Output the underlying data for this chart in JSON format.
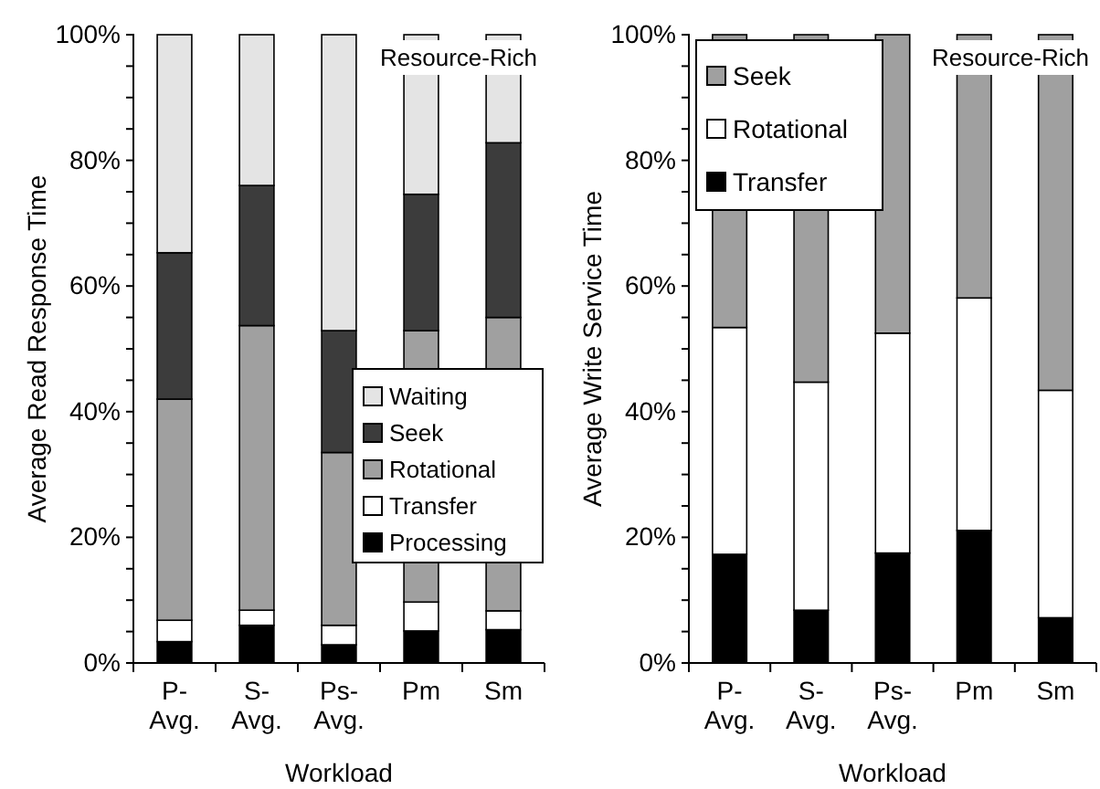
{
  "chart_data": [
    {
      "type": "bar",
      "stacked": true,
      "xlabel": "Workload",
      "ylabel": "Average Read Response Time",
      "categories": [
        "P- Avg.",
        "S- Avg.",
        "Ps- Avg.",
        "Pm",
        "Sm"
      ],
      "ylim": [
        0,
        100
      ],
      "yticks": [
        {
          "value": 0,
          "label": "0%"
        },
        {
          "value": 5,
          "label": null
        },
        {
          "value": 10,
          "label": null
        },
        {
          "value": 15,
          "label": null
        },
        {
          "value": 20,
          "label": "20%"
        },
        {
          "value": 25,
          "label": null
        },
        {
          "value": 30,
          "label": null
        },
        {
          "value": 35,
          "label": null
        },
        {
          "value": 40,
          "label": "40%"
        },
        {
          "value": 45,
          "label": null
        },
        {
          "value": 50,
          "label": null
        },
        {
          "value": 55,
          "label": null
        },
        {
          "value": 60,
          "label": "60%"
        },
        {
          "value": 65,
          "label": null
        },
        {
          "value": 70,
          "label": null
        },
        {
          "value": 75,
          "label": null
        },
        {
          "value": 80,
          "label": "80%"
        },
        {
          "value": 85,
          "label": null
        },
        {
          "value": 90,
          "label": null
        },
        {
          "value": 95,
          "label": null
        },
        {
          "value": 100,
          "label": "100%"
        }
      ],
      "legend": "bottom right",
      "grid": false,
      "annotations": [
        "Resource-Rich"
      ],
      "series": [
        {
          "name": "Processing",
          "color": "#000000",
          "values": [
            3.4,
            6.0,
            2.9,
            5.1,
            5.3
          ]
        },
        {
          "name": "Transfer",
          "color": "#ffffff",
          "values": [
            3.4,
            2.4,
            3.1,
            4.6,
            3.0
          ]
        },
        {
          "name": "Rotational",
          "color": "#a0a0a0",
          "values": [
            35.2,
            45.3,
            27.5,
            43.2,
            46.7
          ]
        },
        {
          "name": "Seek",
          "color": "#3c3c3c",
          "values": [
            23.3,
            22.3,
            19.4,
            21.7,
            27.8
          ]
        },
        {
          "name": "Waiting",
          "color": "#e4e4e4",
          "values": [
            34.7,
            24.0,
            47.1,
            25.4,
            17.2
          ]
        }
      ]
    },
    {
      "type": "bar",
      "stacked": true,
      "xlabel": "Workload",
      "ylabel": "Average Write Service Time",
      "categories": [
        "P- Avg.",
        "S- Avg.",
        "Ps- Avg.",
        "Pm",
        "Sm"
      ],
      "ylim": [
        0,
        100
      ],
      "yticks": [
        {
          "value": 0,
          "label": "0%"
        },
        {
          "value": 5,
          "label": null
        },
        {
          "value": 10,
          "label": null
        },
        {
          "value": 15,
          "label": null
        },
        {
          "value": 20,
          "label": "20%"
        },
        {
          "value": 25,
          "label": null
        },
        {
          "value": 30,
          "label": null
        },
        {
          "value": 35,
          "label": null
        },
        {
          "value": 40,
          "label": "40%"
        },
        {
          "value": 45,
          "label": null
        },
        {
          "value": 50,
          "label": null
        },
        {
          "value": 55,
          "label": null
        },
        {
          "value": 60,
          "label": "60%"
        },
        {
          "value": 65,
          "label": null
        },
        {
          "value": 70,
          "label": null
        },
        {
          "value": 75,
          "label": null
        },
        {
          "value": 80,
          "label": "80%"
        },
        {
          "value": 85,
          "label": null
        },
        {
          "value": 90,
          "label": null
        },
        {
          "value": 95,
          "label": null
        },
        {
          "value": 100,
          "label": "100%"
        }
      ],
      "legend": "top left",
      "grid": false,
      "annotations": [
        "Resource-Rich"
      ],
      "series": [
        {
          "name": "Transfer",
          "color": "#000000",
          "values": [
            17.3,
            8.4,
            17.5,
            21.1,
            7.2
          ]
        },
        {
          "name": "Rotational",
          "color": "#ffffff",
          "values": [
            36.1,
            36.3,
            35.0,
            37.0,
            36.2
          ]
        },
        {
          "name": "Seek",
          "color": "#a0a0a0",
          "values": [
            46.6,
            55.3,
            47.5,
            41.9,
            56.6
          ]
        }
      ]
    }
  ]
}
